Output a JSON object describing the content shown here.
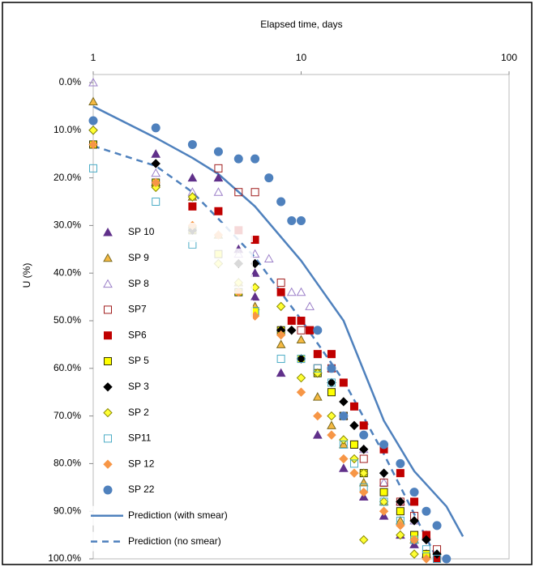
{
  "chart_data": {
    "type": "scatter",
    "x_label": "Elapsed time, days",
    "y_label": "U (%)",
    "xlim": [
      1,
      100
    ],
    "xticks": [
      1,
      10,
      100
    ],
    "x_log": true,
    "ylim": [
      0,
      100
    ],
    "y_inverted": true,
    "yticks": [
      {
        "value": 0,
        "label": "0.0%"
      },
      {
        "value": 10,
        "label": "10.0%"
      },
      {
        "value": 20,
        "label": "20.0%"
      },
      {
        "value": 30,
        "label": "30.0%"
      },
      {
        "value": 40,
        "label": "40.0%"
      },
      {
        "value": 50,
        "label": "50.0%"
      },
      {
        "value": 60,
        "label": "60.0%"
      },
      {
        "value": 70,
        "label": "70.0%"
      },
      {
        "value": 80,
        "label": "80.0%"
      },
      {
        "value": 90,
        "label": "90.0%"
      },
      {
        "value": 100,
        "label": "100.0%"
      }
    ],
    "legend": "left",
    "series": [
      {
        "name": "SP 10",
        "marker": "triangle",
        "color": "#60308a",
        "fill": "#60308a",
        "x": [
          2,
          3,
          4,
          5,
          6,
          6,
          8,
          12,
          16,
          20,
          25,
          30,
          35,
          40
        ],
        "values": [
          15,
          20,
          20,
          35,
          40,
          45,
          61,
          74,
          81,
          87,
          91,
          95,
          97,
          99
        ]
      },
      {
        "name": "SP 9",
        "marker": "triangle",
        "color": "#7a6a20",
        "fill": "#f5b942",
        "x": [
          1,
          2,
          3,
          4,
          5,
          6,
          8,
          10,
          12,
          14,
          16,
          20,
          25,
          30,
          35,
          40
        ],
        "values": [
          4,
          21,
          24,
          32,
          42,
          47,
          55,
          54,
          66,
          72,
          76,
          84,
          88,
          92,
          96,
          99
        ]
      },
      {
        "name": "SP 8",
        "marker": "triangle",
        "color": "#9b7fc8",
        "fill": "none",
        "x": [
          1,
          2,
          3,
          4,
          5,
          6,
          7,
          9,
          10,
          11,
          14,
          16,
          20,
          25,
          30,
          35,
          40,
          45
        ],
        "values": [
          0,
          19,
          23,
          23,
          36,
          36,
          37,
          44,
          44,
          47,
          60,
          70,
          77,
          84,
          88,
          92,
          95,
          99
        ]
      },
      {
        "name": "SP7",
        "marker": "square",
        "color": "#a01c1c",
        "fill": "none",
        "x": [
          4,
          5,
          6,
          8,
          10,
          11,
          12,
          14,
          16,
          18,
          20,
          25,
          30,
          35,
          40,
          45
        ],
        "values": [
          18,
          23,
          23,
          42,
          52,
          52,
          60,
          60,
          70,
          76,
          79,
          84,
          88,
          91,
          95,
          98
        ]
      },
      {
        "name": "SP6",
        "marker": "square",
        "color": "#c00000",
        "fill": "#c00000",
        "x": [
          3,
          4,
          5,
          6,
          8,
          9,
          10,
          11,
          12,
          14,
          16,
          18,
          20,
          25,
          30,
          35,
          40,
          45
        ],
        "values": [
          26,
          27,
          31,
          33,
          44,
          50,
          50,
          52,
          57,
          57,
          63,
          68,
          72,
          77,
          82,
          88,
          95,
          100
        ]
      },
      {
        "name": "SP 5",
        "marker": "square",
        "color": "#333300",
        "fill": "#ffff00",
        "x": [
          1,
          2,
          3,
          4,
          5,
          6,
          8,
          10,
          12,
          14,
          16,
          18,
          20,
          25,
          30,
          35,
          40
        ],
        "values": [
          13,
          21,
          31,
          36,
          44,
          48,
          52,
          58,
          61,
          65,
          70,
          76,
          82,
          86,
          90,
          95,
          99
        ]
      },
      {
        "name": "SP 3",
        "marker": "diamond",
        "color": "#000000",
        "fill": "#000000",
        "x": [
          1,
          2,
          3,
          4,
          5,
          6,
          8,
          9,
          10,
          12,
          14,
          16,
          18,
          20,
          25,
          30,
          35,
          40,
          45
        ],
        "values": [
          10,
          17,
          31,
          38,
          38,
          38,
          52,
          52,
          58,
          61,
          63,
          67,
          72,
          77,
          82,
          88,
          92,
          96,
          99
        ]
      },
      {
        "name": "SP 2",
        "marker": "diamond",
        "color": "#8a8a00",
        "fill": "#ffff33",
        "x": [
          1,
          2,
          3,
          4,
          5,
          6,
          8,
          10,
          12,
          14,
          16,
          18,
          20,
          20,
          25,
          30,
          35
        ],
        "values": [
          10,
          22,
          24,
          38,
          42,
          43,
          47,
          62,
          61,
          70,
          75,
          79,
          82,
          96,
          88,
          95,
          99
        ]
      },
      {
        "name": "SP11",
        "marker": "square",
        "color": "#4bacc6",
        "fill": "none",
        "x": [
          1,
          2,
          3,
          6,
          8,
          10,
          12,
          14,
          16,
          18,
          20,
          25,
          30,
          35,
          40,
          45
        ],
        "values": [
          18,
          25,
          34,
          48,
          58,
          58,
          60,
          63,
          76,
          80,
          85,
          88,
          92,
          96,
          98,
          100
        ]
      },
      {
        "name": "SP 12",
        "marker": "diamond",
        "color": "#f79646",
        "fill": "#f79646",
        "x": [
          1,
          2,
          3,
          4,
          5,
          6,
          8,
          10,
          12,
          14,
          16,
          18,
          20,
          25,
          30,
          35,
          40
        ],
        "values": [
          13,
          21,
          30,
          32,
          44,
          49,
          53,
          65,
          70,
          74,
          79,
          82,
          86,
          90,
          93,
          96,
          100
        ]
      },
      {
        "name": "SP 22",
        "marker": "circle",
        "color": "#4f81bd",
        "fill": "#4f81bd",
        "x": [
          1,
          2,
          3,
          4,
          5,
          6,
          7,
          8,
          9,
          10,
          12,
          14,
          16,
          20,
          25,
          30,
          35,
          40,
          45,
          50
        ],
        "values": [
          8,
          9.5,
          13,
          14.5,
          16,
          16,
          20,
          25,
          29,
          29,
          52,
          60,
          70,
          74,
          76,
          80,
          86,
          90,
          93,
          100
        ]
      }
    ],
    "lines": [
      {
        "name": "Prediction (with smear)",
        "color": "#4f81bd",
        "dashed": false,
        "x": [
          1,
          2,
          3,
          4,
          6,
          10,
          16,
          25,
          35,
          50,
          60
        ],
        "values": [
          5,
          11.6,
          15.8,
          19.2,
          26,
          37.4,
          50,
          71,
          81.6,
          89,
          95.3
        ]
      },
      {
        "name": "Prediction (no smear)",
        "color": "#4f81bd",
        "dashed": true,
        "x": [
          1,
          2,
          3,
          4,
          6,
          10,
          16,
          25,
          35,
          45
        ],
        "values": [
          13.3,
          17.5,
          23,
          28.6,
          36.7,
          49.8,
          62.6,
          78,
          90.6,
          100
        ]
      }
    ]
  }
}
